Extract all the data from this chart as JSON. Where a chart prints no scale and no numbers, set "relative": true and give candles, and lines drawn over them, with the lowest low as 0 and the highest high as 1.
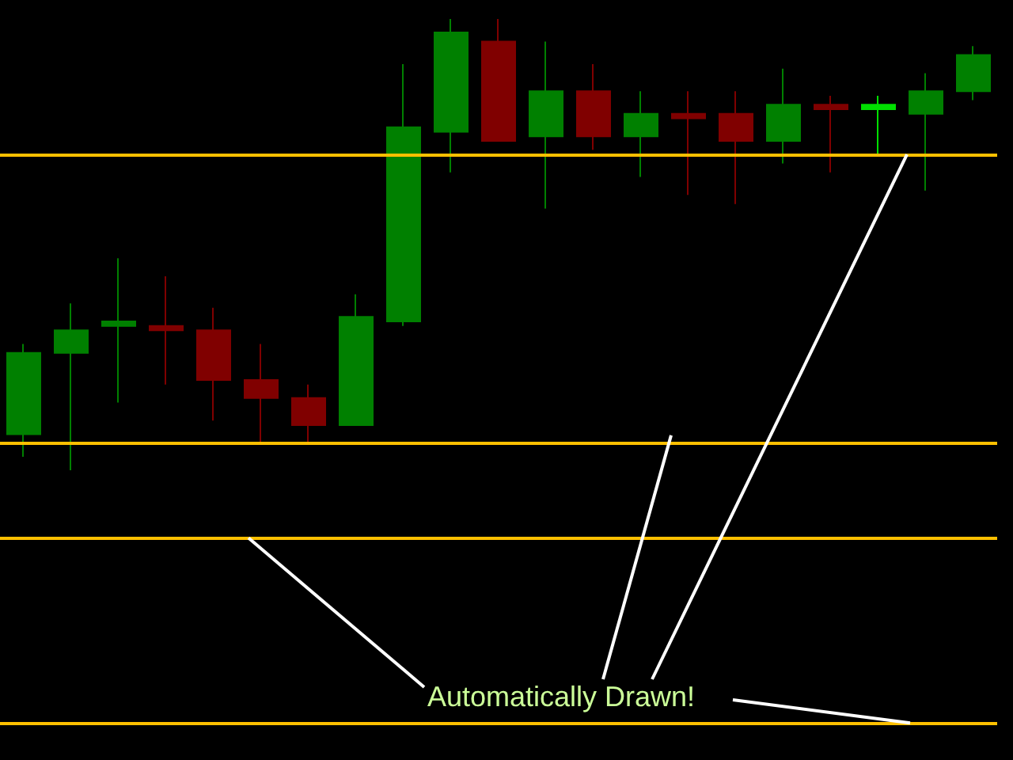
{
  "chart_data": {
    "type": "candlestick",
    "relative": true,
    "categories": [
      null,
      null,
      null,
      null,
      null,
      null,
      null,
      null,
      null,
      null,
      null,
      null,
      null,
      null,
      null,
      null,
      null,
      null,
      null,
      null,
      null
    ],
    "ohlc": [
      [
        0.08,
        0.28,
        0.03,
        0.26
      ],
      [
        0.26,
        0.37,
        0,
        0.31
      ],
      [
        0.32,
        0.47,
        0.15,
        0.33
      ],
      [
        0.32,
        0.43,
        0.19,
        0.31
      ],
      [
        0.31,
        0.36,
        0.11,
        0.2
      ],
      [
        0.2,
        0.28,
        0.06,
        0.16
      ],
      [
        0.16,
        0.19,
        0.06,
        0.1
      ],
      [
        0.1,
        0.39,
        0.1,
        0.34
      ],
      [
        0.33,
        0.9,
        0.32,
        0.76
      ],
      [
        0.75,
        1,
        0.66,
        0.97
      ],
      [
        0.95,
        1,
        0.73,
        0.73
      ],
      [
        0.74,
        0.95,
        0.58,
        0.84
      ],
      [
        0.84,
        0.9,
        0.71,
        0.74
      ],
      [
        0.74,
        0.84,
        0.65,
        0.79
      ],
      [
        0.79,
        0.84,
        0.61,
        0.78
      ],
      [
        0.79,
        0.84,
        0.59,
        0.73
      ],
      [
        0.73,
        0.89,
        0.68,
        0.81
      ],
      [
        0.81,
        0.83,
        0.66,
        0.8
      ],
      [
        0.8,
        0.83,
        0.7,
        0.81
      ],
      [
        0.79,
        0.88,
        0.62,
        0.84
      ],
      [
        0.84,
        0.94,
        0.82,
        0.92
      ]
    ],
    "colors": [
      "#008000",
      "#008000",
      "#008000",
      "#800000",
      "#800000",
      "#800000",
      "#800000",
      "#008000",
      "#008000",
      "#008000",
      "#800000",
      "#008000",
      "#800000",
      "#008000",
      "#800000",
      "#800000",
      "#008000",
      "#800000",
      "#00e000",
      "#008000",
      "#008000"
    ],
    "ref_lines": [
      {
        "axis": "y",
        "value": 0.7,
        "color": "#ffc000"
      },
      {
        "axis": "y",
        "value": 0.06,
        "color": "#ffc000"
      },
      {
        "axis": "y",
        "value": -0.15,
        "color": "#ffc000"
      },
      {
        "axis": "y",
        "value": -0.56,
        "color": "#ffc000"
      }
    ],
    "annotations": [
      "Automatically Drawn!"
    ],
    "grid": false
  }
}
